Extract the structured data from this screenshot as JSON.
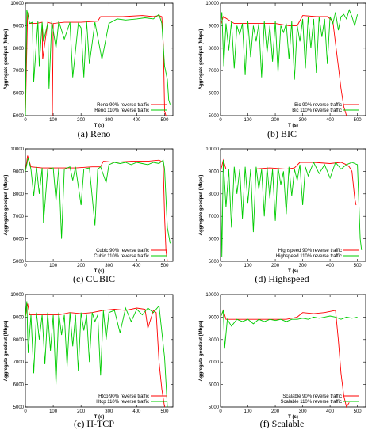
{
  "figure": {
    "captions": [
      "(a) Reno",
      "(b) BIC",
      "(c) CUBIC",
      "(d) Highspeed",
      "(e) H-TCP",
      "(f) Scalable"
    ]
  },
  "colors": {
    "series_90": "#ff0000",
    "series_110": "#00cc00",
    "axis": "#000000"
  },
  "chart_data": [
    {
      "type": "line",
      "panel": "Reno",
      "xlabel": "T (s)",
      "ylabel": "Aggregate goodput (Mbps)",
      "xlim": [
        0,
        530
      ],
      "ylim": [
        5000,
        10000
      ],
      "xticks": [
        0,
        100,
        200,
        300,
        400,
        500
      ],
      "yticks": [
        5000,
        6000,
        7000,
        8000,
        9000,
        10000
      ],
      "legend": "bottom-right",
      "series": [
        {
          "name": "Reno 90% reverse traffic",
          "color": "#ff0000",
          "x": [
            0,
            8,
            15,
            40,
            60,
            62,
            80,
            95,
            97,
            100,
            140,
            200,
            260,
            270,
            300,
            350,
            420,
            460,
            480,
            490,
            496,
            500,
            505,
            510
          ],
          "y": [
            5000,
            9600,
            9100,
            9100,
            9150,
            7500,
            9150,
            9100,
            5000,
            9100,
            9150,
            9150,
            9200,
            9400,
            9400,
            9400,
            9450,
            9400,
            9450,
            9400,
            8000,
            5200,
            5000,
            5000
          ]
        },
        {
          "name": "Reno 110% reverse traffic",
          "color": "#00cc00",
          "x": [
            0,
            5,
            15,
            25,
            30,
            45,
            50,
            60,
            65,
            80,
            85,
            95,
            110,
            120,
            140,
            160,
            170,
            190,
            200,
            210,
            220,
            230,
            250,
            275,
            300,
            330,
            360,
            400,
            430,
            460,
            480,
            490,
            500,
            510,
            515,
            520
          ],
          "y": [
            5000,
            9700,
            9100,
            9150,
            6500,
            9200,
            7200,
            9150,
            8300,
            9100,
            6200,
            9200,
            8000,
            9200,
            8400,
            9150,
            6700,
            9100,
            8900,
            6700,
            9200,
            7300,
            9150,
            7500,
            9100,
            9300,
            9250,
            9300,
            9350,
            9300,
            9500,
            9100,
            7200,
            6600,
            5700,
            5500
          ]
        }
      ]
    },
    {
      "type": "line",
      "panel": "BIC",
      "xlabel": "T (s)",
      "ylabel": "Aggregate goodput (Mbps)",
      "xlim": [
        0,
        530
      ],
      "ylim": [
        5000,
        10000
      ],
      "xticks": [
        0,
        100,
        200,
        300,
        400,
        500
      ],
      "yticks": [
        5000,
        6000,
        7000,
        8000,
        9000,
        10000
      ],
      "legend": "right",
      "series": [
        {
          "name": "Bic 90% reverse traffic",
          "color": "#ff0000",
          "x": [
            0,
            10,
            50,
            100,
            150,
            200,
            250,
            280,
            300,
            350,
            390,
            410,
            420,
            430,
            440,
            450,
            460
          ],
          "y": [
            9000,
            9400,
            9100,
            9100,
            9100,
            9100,
            9000,
            9000,
            9450,
            9400,
            9400,
            9200,
            8200,
            7200,
            6200,
            5400,
            5000
          ]
        },
        {
          "name": "Bic 110% reverse traffic",
          "color": "#00cc00",
          "x": [
            0,
            5,
            12,
            20,
            30,
            40,
            50,
            60,
            70,
            80,
            90,
            100,
            110,
            120,
            130,
            140,
            150,
            160,
            170,
            180,
            190,
            200,
            210,
            220,
            230,
            240,
            250,
            260,
            270,
            280,
            290,
            300,
            310,
            320,
            330,
            340,
            350,
            360,
            370,
            380,
            390,
            400,
            410,
            420,
            430,
            440,
            450,
            460,
            470,
            480,
            490,
            500
          ],
          "y": [
            9000,
            9600,
            7200,
            9100,
            7900,
            9200,
            7100,
            9000,
            8600,
            9100,
            6800,
            9200,
            7600,
            9000,
            8300,
            9100,
            6700,
            9200,
            7800,
            9000,
            7400,
            9200,
            6900,
            9000,
            8700,
            9100,
            7500,
            9200,
            6600,
            9000,
            8300,
            9300,
            7100,
            9400,
            8000,
            9300,
            6900,
            9400,
            8500,
            9300,
            7300,
            9400,
            9100,
            9600,
            8800,
            9400,
            9500,
            9300,
            9700,
            9400,
            9000,
            9500
          ]
        }
      ]
    },
    {
      "type": "line",
      "panel": "CUBIC",
      "xlabel": "T (s)",
      "ylabel": "Aggregate goodput (Mbps)",
      "xlim": [
        0,
        530
      ],
      "ylim": [
        5000,
        10000
      ],
      "xticks": [
        0,
        100,
        200,
        300,
        400,
        500
      ],
      "yticks": [
        5000,
        6000,
        7000,
        8000,
        9000,
        10000
      ],
      "legend": "bottom-right",
      "series": [
        {
          "name": "Cubic 90% reverse traffic",
          "color": "#ff0000",
          "x": [
            0,
            8,
            20,
            60,
            120,
            180,
            240,
            270,
            280,
            320,
            380,
            440,
            480,
            495,
            500,
            505,
            510
          ],
          "y": [
            9000,
            9700,
            9200,
            9150,
            9150,
            9150,
            9200,
            9200,
            9450,
            9400,
            9450,
            9450,
            9500,
            9400,
            7000,
            5500,
            5000
          ]
        },
        {
          "name": "Cubic 110% reverse traffic",
          "color": "#00cc00",
          "x": [
            0,
            10,
            20,
            30,
            40,
            50,
            60,
            65,
            80,
            100,
            110,
            120,
            130,
            140,
            160,
            170,
            180,
            200,
            210,
            230,
            250,
            260,
            270,
            290,
            300,
            320,
            340,
            360,
            380,
            400,
            420,
            440,
            460,
            480,
            495,
            500,
            510,
            520
          ],
          "y": [
            9000,
            9600,
            9100,
            7900,
            9200,
            8000,
            9150,
            6700,
            9100,
            9150,
            7700,
            9150,
            6000,
            9100,
            9200,
            8600,
            9200,
            7500,
            9100,
            9150,
            6600,
            9100,
            9200,
            8500,
            9300,
            9400,
            9350,
            9400,
            9300,
            9400,
            9350,
            9300,
            9400,
            9350,
            9500,
            9100,
            6500,
            5800
          ]
        }
      ]
    },
    {
      "type": "line",
      "panel": "Highspeed",
      "xlabel": "T (s)",
      "ylabel": "Aggregate goodput (Mbps)",
      "xlim": [
        0,
        530
      ],
      "ylim": [
        5000,
        10000
      ],
      "xticks": [
        0,
        100,
        200,
        300,
        400,
        500
      ],
      "yticks": [
        5000,
        6000,
        7000,
        8000,
        9000,
        10000
      ],
      "legend": "bottom-right",
      "series": [
        {
          "name": "Highspeed 90% reverse traffic",
          "color": "#ff0000",
          "x": [
            0,
            10,
            20,
            60,
            120,
            180,
            240,
            270,
            290,
            340,
            400,
            440,
            460,
            470,
            480,
            490,
            495
          ],
          "y": [
            9000,
            9500,
            9100,
            9100,
            9100,
            9150,
            9100,
            9150,
            9400,
            9400,
            9350,
            9400,
            9300,
            9200,
            9000,
            7800,
            7500
          ]
        },
        {
          "name": "Highspeed 110% reverse traffic",
          "color": "#00cc00",
          "x": [
            0,
            5,
            10,
            20,
            30,
            40,
            50,
            60,
            70,
            80,
            90,
            100,
            110,
            120,
            130,
            140,
            150,
            160,
            170,
            180,
            190,
            200,
            210,
            220,
            230,
            240,
            250,
            260,
            270,
            280,
            290,
            300,
            310,
            320,
            340,
            360,
            380,
            400,
            420,
            440,
            460,
            480,
            500,
            510,
            515
          ],
          "y": [
            9000,
            5200,
            9500,
            7400,
            9100,
            6500,
            9200,
            8000,
            9100,
            6900,
            9200,
            7600,
            9100,
            6300,
            9200,
            8200,
            9100,
            7000,
            9200,
            7800,
            9100,
            6800,
            9200,
            8400,
            9000,
            7100,
            9200,
            7900,
            9100,
            8600,
            9300,
            7500,
            9200,
            8800,
            9400,
            8900,
            9300,
            8700,
            9400,
            9100,
            9300,
            9400,
            9300,
            6000,
            5500
          ]
        }
      ]
    },
    {
      "type": "line",
      "panel": "H-TCP",
      "xlabel": "T (s)",
      "ylabel": "Aggregate goodput (Mbps)",
      "xlim": [
        0,
        530
      ],
      "ylim": [
        5000,
        10000
      ],
      "xticks": [
        0,
        100,
        200,
        300,
        400,
        500
      ],
      "yticks": [
        5000,
        6000,
        7000,
        8000,
        9000,
        10000
      ],
      "legend": "bottom-right",
      "series": [
        {
          "name": "Htcp 90% reverse traffic",
          "color": "#ff0000",
          "x": [
            0,
            8,
            15,
            40,
            80,
            120,
            160,
            200,
            240,
            280,
            320,
            360,
            400,
            430,
            440,
            460,
            470,
            480,
            490,
            500
          ],
          "y": [
            9000,
            9600,
            9100,
            9100,
            9100,
            9100,
            9200,
            9150,
            9200,
            9300,
            9350,
            9300,
            9400,
            9350,
            8500,
            9300,
            9200,
            7000,
            5800,
            5000
          ]
        },
        {
          "name": "Htcp 110% reverse traffic",
          "color": "#00cc00",
          "x": [
            0,
            5,
            10,
            20,
            30,
            40,
            50,
            60,
            70,
            80,
            90,
            100,
            110,
            120,
            130,
            140,
            150,
            160,
            170,
            180,
            190,
            200,
            210,
            220,
            230,
            240,
            250,
            260,
            270,
            280,
            290,
            300,
            320,
            340,
            360,
            380,
            400,
            420,
            440,
            460,
            480,
            500,
            510
          ],
          "y": [
            9000,
            9700,
            7400,
            9100,
            6500,
            9200,
            8000,
            9100,
            6900,
            9200,
            7500,
            9100,
            6000,
            9200,
            8200,
            9100,
            6800,
            9200,
            7700,
            9100,
            6600,
            9200,
            8400,
            9100,
            7000,
            9200,
            8800,
            9100,
            6400,
            9300,
            8000,
            9200,
            9300,
            8300,
            9400,
            8800,
            9350,
            9100,
            9400,
            9200,
            9500,
            7200,
            5000
          ]
        }
      ]
    },
    {
      "type": "line",
      "panel": "Scalable",
      "xlabel": "T (s)",
      "ylabel": "Aggregate goodput (Mbps)",
      "xlim": [
        0,
        530
      ],
      "ylim": [
        5000,
        10000
      ],
      "xticks": [
        0,
        100,
        200,
        300,
        400,
        500
      ],
      "yticks": [
        5000,
        6000,
        7000,
        8000,
        9000,
        10000
      ],
      "legend": "bottom-right",
      "series": [
        {
          "name": "Scalable 90% reverse traffic",
          "color": "#ff0000",
          "x": [
            0,
            10,
            20,
            60,
            120,
            180,
            240,
            280,
            300,
            340,
            380,
            420,
            430,
            440,
            450,
            460,
            470
          ],
          "y": [
            9000,
            9300,
            8900,
            8900,
            8900,
            8900,
            8900,
            9000,
            9200,
            9150,
            9200,
            9300,
            8000,
            6500,
            5500,
            5000,
            5200
          ]
        },
        {
          "name": "Scalable 110% reverse traffic",
          "color": "#00cc00",
          "x": [
            0,
            10,
            15,
            25,
            40,
            60,
            80,
            100,
            120,
            140,
            160,
            180,
            200,
            220,
            240,
            260,
            280,
            300,
            320,
            340,
            360,
            380,
            400,
            420,
            440,
            460,
            480,
            500
          ],
          "y": [
            9000,
            9300,
            7600,
            8900,
            8600,
            8900,
            8800,
            8900,
            8700,
            8900,
            8800,
            8900,
            8850,
            8900,
            8800,
            8900,
            8900,
            8950,
            8900,
            9000,
            8950,
            9000,
            9050,
            9000,
            8900,
            9000,
            8950,
            9000
          ]
        }
      ]
    }
  ]
}
